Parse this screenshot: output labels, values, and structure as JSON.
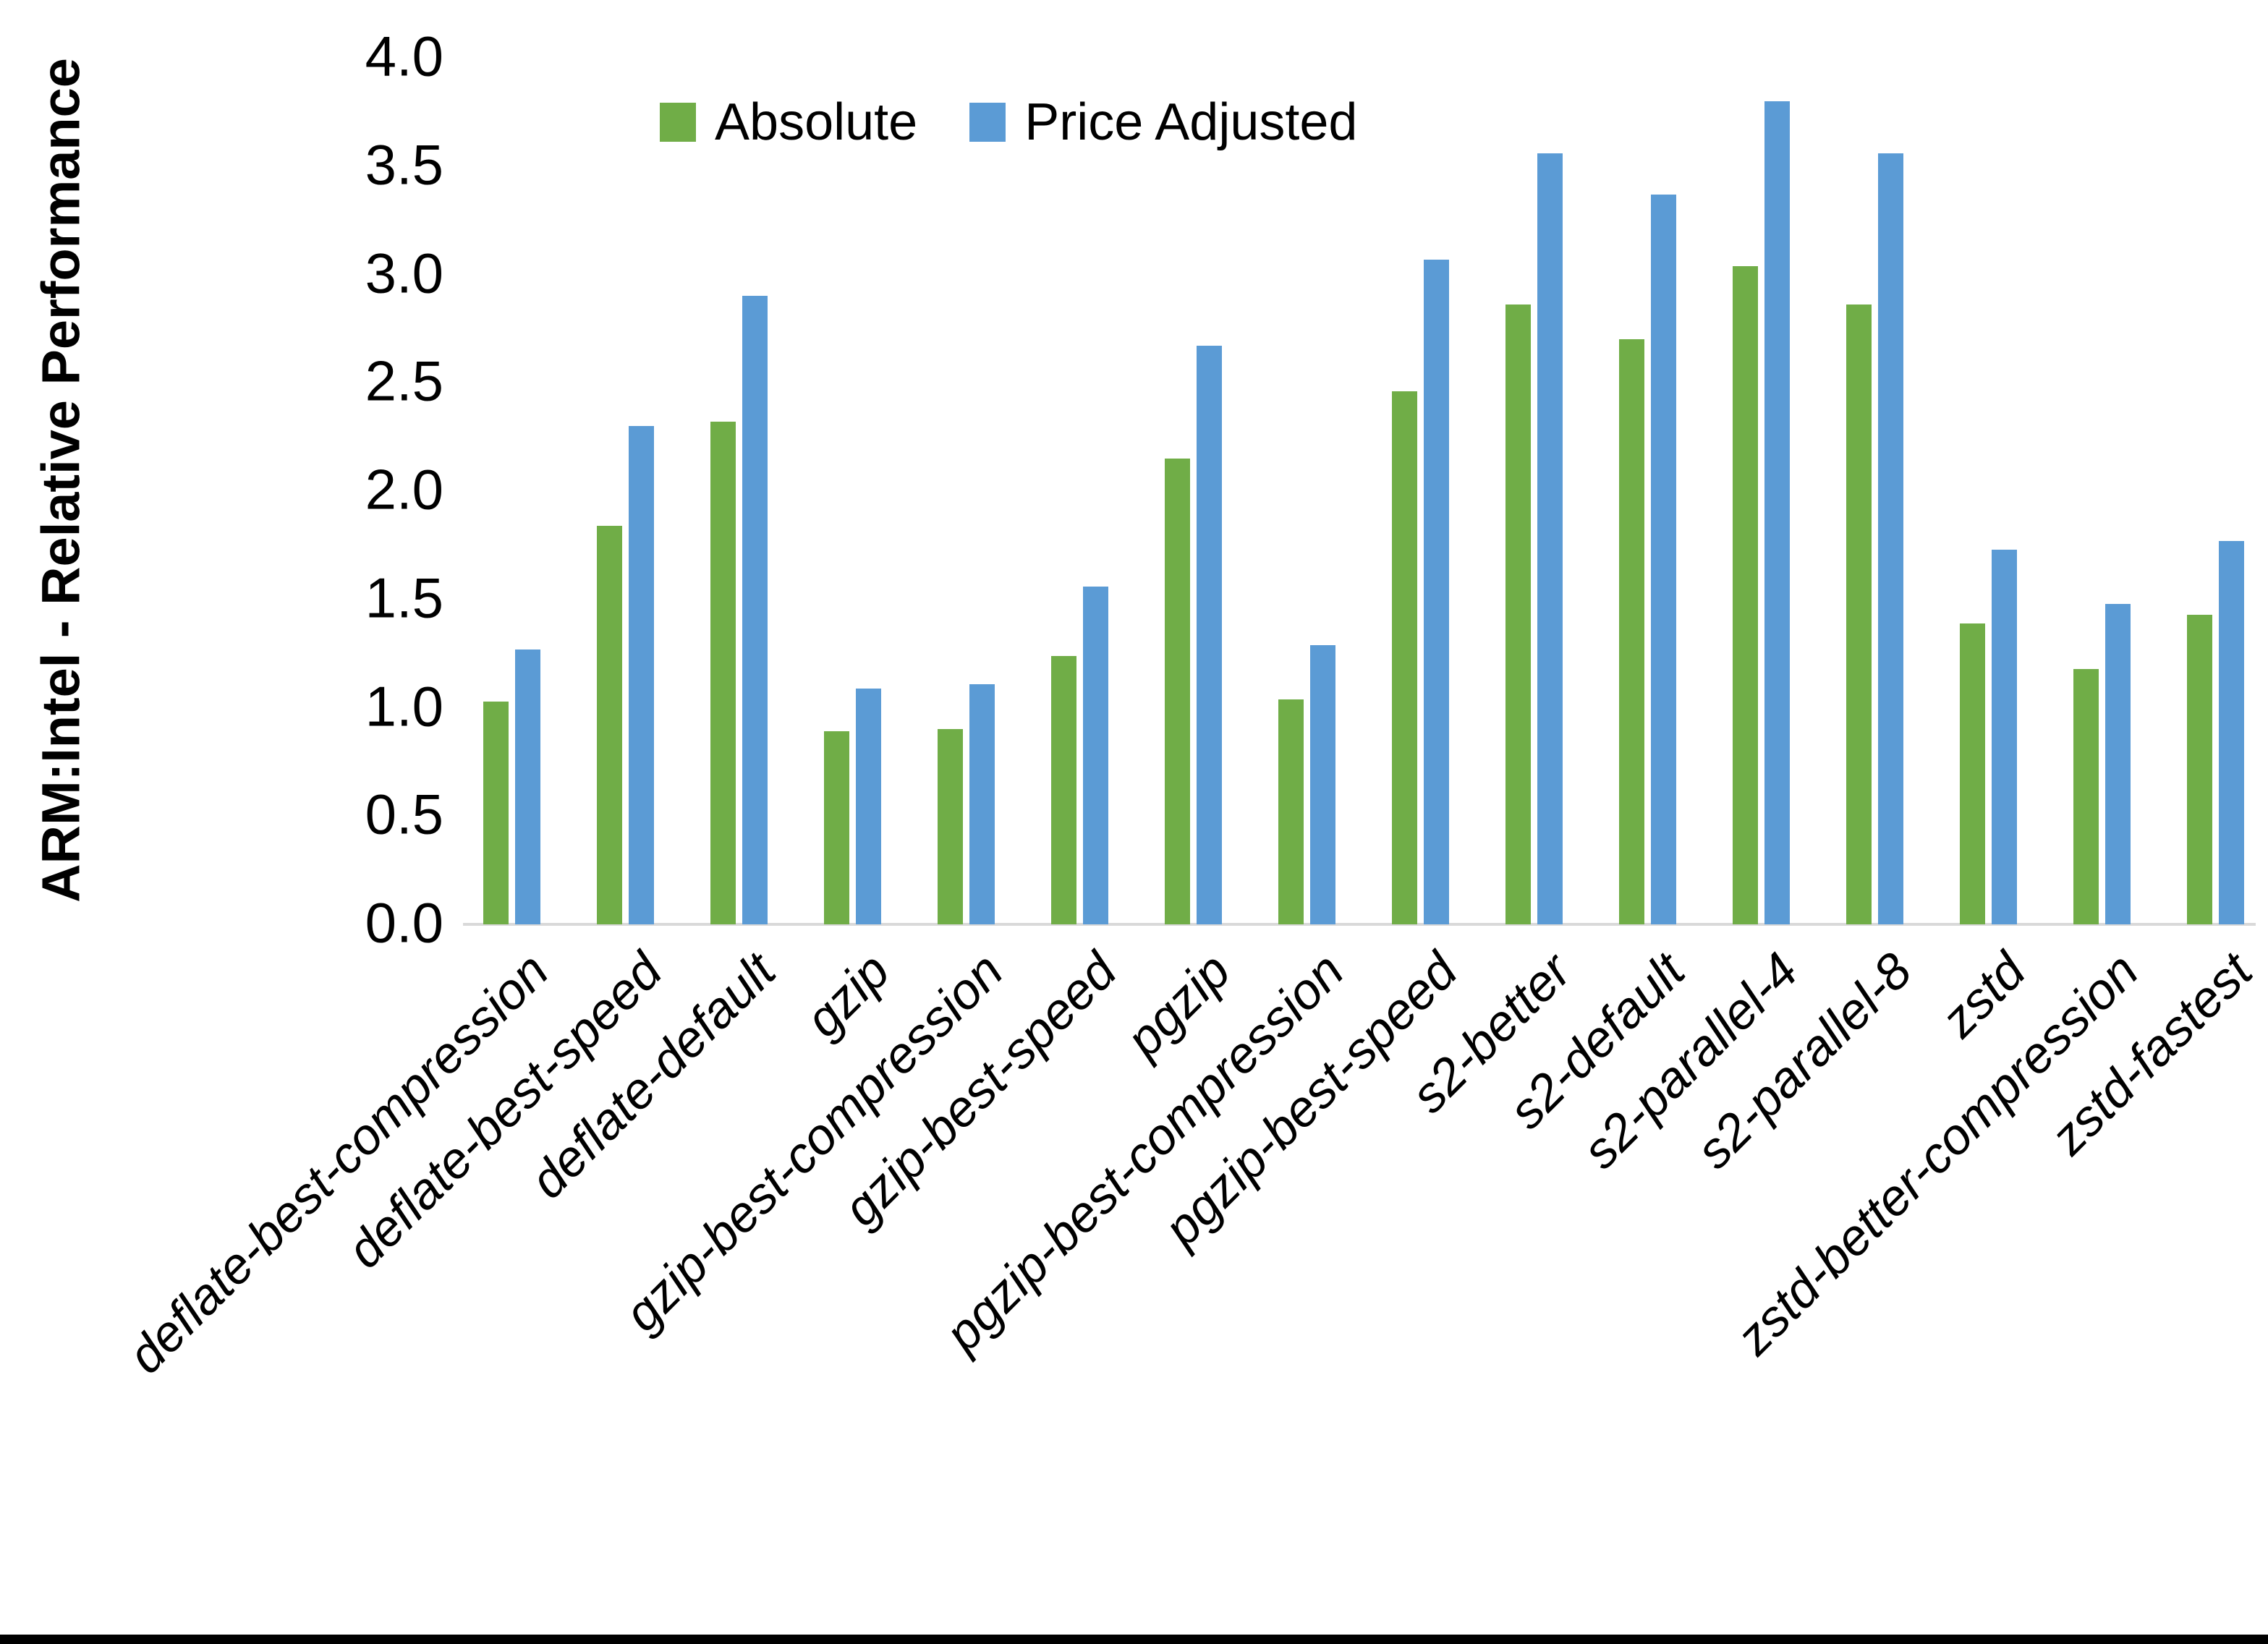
{
  "chart_data": {
    "type": "bar",
    "title": "",
    "xlabel": "",
    "ylabel": "ARM:Intel - Relative Performance",
    "ylim": [
      0.0,
      4.0
    ],
    "ytick_labels": [
      "0.0",
      "0.5",
      "1.0",
      "1.5",
      "2.0",
      "2.5",
      "3.0",
      "3.5",
      "4.0"
    ],
    "grid": false,
    "legend_position": "top-center",
    "categories": [
      "deflate-best-compression",
      "deflate-best-speed",
      "deflate-default",
      "gzip",
      "gzip-best-compression",
      "gzip-best-speed",
      "pgzip",
      "pgzip-best-compression",
      "pgzip-best-speed",
      "s2-better",
      "s2-default",
      "s2-parallel-4",
      "s2-parallel-8",
      "zstd",
      "zstd-better-compression",
      "zstd-fastest"
    ],
    "series": [
      {
        "name": "Absolute",
        "color": "#70AD47",
        "values": [
          1.03,
          1.84,
          2.32,
          0.89,
          0.9,
          1.24,
          2.15,
          1.04,
          2.46,
          2.86,
          2.7,
          3.04,
          2.86,
          1.39,
          1.18,
          1.43
        ]
      },
      {
        "name": "Price Adjusted",
        "color": "#5B9BD5",
        "values": [
          1.27,
          2.3,
          2.9,
          1.09,
          1.11,
          1.56,
          2.67,
          1.29,
          3.07,
          3.56,
          3.37,
          3.8,
          3.56,
          1.73,
          1.48,
          1.77
        ]
      }
    ]
  },
  "colors": {
    "background": "#ffffff",
    "axis_line": "#d9d9d9",
    "text": "#000000",
    "bottom_border": "#000000"
  }
}
